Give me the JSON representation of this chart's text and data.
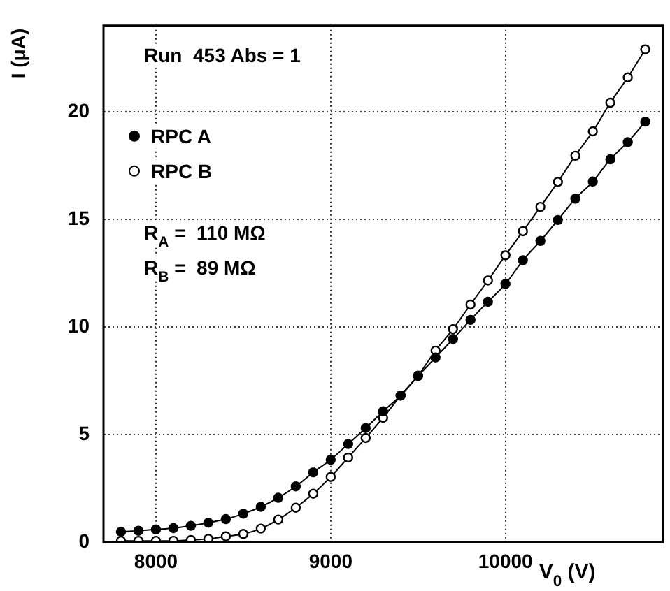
{
  "chart_data": {
    "type": "line",
    "xlabel": "V$_{0}$ (V)",
    "ylabel": "I (μA)",
    "x": [
      7800,
      7900,
      8000,
      8100,
      8200,
      8300,
      8400,
      8500,
      8600,
      8700,
      8800,
      8900,
      9000,
      9100,
      9200,
      9300,
      9400,
      9500,
      9600,
      9700,
      9800,
      9900,
      10000,
      10100,
      10200,
      10300,
      10400,
      10500,
      10600,
      10700,
      10800
    ],
    "series": [
      {
        "name": "RPC A",
        "color": "#000000",
        "values": [
          0.48,
          0.53,
          0.59,
          0.65,
          0.76,
          0.9,
          1.07,
          1.32,
          1.64,
          2.06,
          2.59,
          3.24,
          3.83,
          4.56,
          5.3,
          6.08,
          6.81,
          7.72,
          8.58,
          9.44,
          10.33,
          11.17,
          12.0,
          13.1,
          14.0,
          14.97,
          15.96,
          16.76,
          17.79,
          18.59,
          19.54
        ]
      },
      {
        "name": "RPC B",
        "color": "#000000",
        "values": [
          0.06,
          0.06,
          0.06,
          0.06,
          0.1,
          0.15,
          0.27,
          0.38,
          0.63,
          1.05,
          1.6,
          2.25,
          3.03,
          3.93,
          4.84,
          5.78,
          6.81,
          7.74,
          8.9,
          9.9,
          11.04,
          12.16,
          13.33,
          14.45,
          15.58,
          16.74,
          17.96,
          19.09,
          20.42,
          21.6,
          22.9
        ]
      }
    ],
    "xlim": [
      7700,
      10900
    ],
    "xticks": [
      8000,
      9000,
      10000
    ],
    "ylim": [
      0,
      24
    ],
    "yticks": [
      0,
      5,
      10,
      15,
      20
    ],
    "grid": true,
    "legend": "top left",
    "marker": "circle",
    "line_style": "solid",
    "annotations": [
      "Run  453 Abs = 1",
      "R$_{A}$ =  110 MΩ",
      "R$_{B}$ =  89 MΩ"
    ]
  }
}
